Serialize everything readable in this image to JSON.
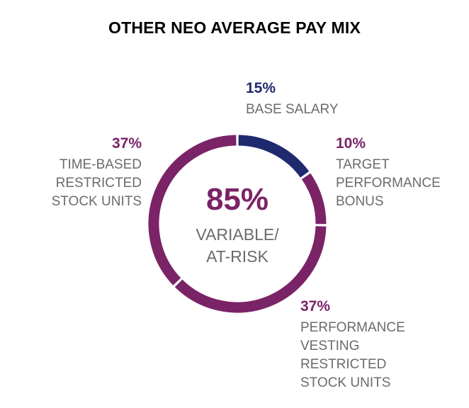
{
  "chart_data": {
    "type": "pie",
    "style": "donut",
    "title": "OTHER NEO AVERAGE PAY MIX",
    "center": {
      "value": "85%",
      "label_lines": [
        "VARIABLE/",
        "AT-RISK"
      ],
      "color": "#7b2367"
    },
    "slices": [
      {
        "label_lines": [
          "BASE SALARY"
        ],
        "value": 15,
        "value_text": "15%",
        "color": "#1f2a6e"
      },
      {
        "label_lines": [
          "TARGET",
          "PERFORMANCE",
          "BONUS"
        ],
        "value": 10,
        "value_text": "10%",
        "color": "#7b2367"
      },
      {
        "label_lines": [
          "PERFORMANCE",
          "VESTING",
          "RESTRICTED",
          "STOCK UNITS"
        ],
        "value": 37,
        "value_text": "37%",
        "color": "#7b2367"
      },
      {
        "label_lines": [
          "TIME-BASED",
          "RESTRICTED",
          "STOCK UNITS"
        ],
        "value": 37,
        "value_text": "37%",
        "color": "#7b2367"
      }
    ]
  }
}
